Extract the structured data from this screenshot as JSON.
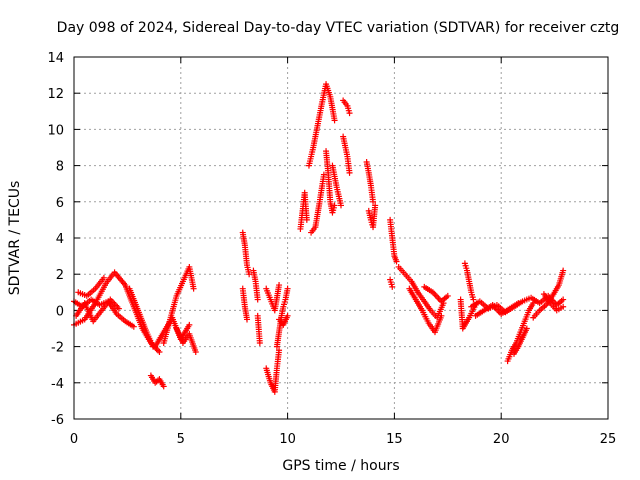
{
  "chart_data": {
    "type": "scatter",
    "title": "Day 098 of 2024, Sidereal Day-to-day VTEC variation (SDTVAR) for receiver cztg",
    "xlabel": "GPS time / hours",
    "ylabel": "SDTVAR / TECUs",
    "xlim": [
      0,
      25
    ],
    "ylim": [
      -6,
      14
    ],
    "xticks": [
      0,
      5,
      10,
      15,
      20,
      25
    ],
    "yticks": [
      -6,
      -4,
      -2,
      0,
      2,
      4,
      6,
      8,
      10,
      12,
      14
    ],
    "grid": true,
    "marker": "plus",
    "color": "#ff0000",
    "segments": [
      {
        "x": [
          0.0,
          0.5,
          1.0,
          1.5,
          1.9,
          2.4,
          2.8,
          3.2,
          3.6,
          4.0
        ],
        "y": [
          -0.8,
          -0.5,
          0.4,
          1.5,
          2.1,
          1.4,
          0.2,
          -1.0,
          -1.8,
          -2.3
        ]
      },
      {
        "x": [
          0.0,
          0.4,
          0.8,
          1.2,
          1.6,
          2.0,
          2.4,
          2.8
        ],
        "y": [
          0.5,
          0.2,
          0.6,
          0.3,
          0.5,
          -0.2,
          -0.6,
          -0.9
        ]
      },
      {
        "x": [
          0.1,
          0.5,
          0.9,
          1.3,
          1.7,
          2.1
        ],
        "y": [
          -0.3,
          0.4,
          -0.6,
          0.0,
          0.6,
          0.1
        ]
      },
      {
        "x": [
          0.2,
          0.6,
          1.0,
          1.4
        ],
        "y": [
          1.0,
          0.8,
          1.2,
          1.8
        ]
      },
      {
        "x": [
          2.6,
          3.0,
          3.4,
          3.7
        ],
        "y": [
          1.2,
          0.0,
          -1.2,
          -2.0
        ]
      },
      {
        "x": [
          3.6,
          3.8,
          4.0,
          4.2
        ],
        "y": [
          -3.6,
          -4.0,
          -3.8,
          -4.2
        ]
      },
      {
        "x": [
          3.8,
          4.2,
          4.6,
          5.0,
          5.4
        ],
        "y": [
          -2.0,
          -1.2,
          -0.4,
          -1.6,
          -0.8
        ]
      },
      {
        "x": [
          4.2,
          4.5,
          4.8,
          5.1,
          5.4,
          5.6
        ],
        "y": [
          -1.8,
          -0.5,
          0.8,
          1.6,
          2.4,
          1.2
        ]
      },
      {
        "x": [
          4.8,
          5.1,
          5.4,
          5.7
        ],
        "y": [
          -1.0,
          -1.8,
          -1.3,
          -2.3
        ]
      },
      {
        "x": [
          7.9,
          8.0,
          8.1,
          8.2
        ],
        "y": [
          4.3,
          3.6,
          2.5,
          2.0
        ]
      },
      {
        "x": [
          7.9,
          8.0,
          8.1
        ],
        "y": [
          1.2,
          0.2,
          -0.5
        ]
      },
      {
        "x": [
          8.4,
          8.5,
          8.6
        ],
        "y": [
          2.2,
          1.6,
          0.6
        ]
      },
      {
        "x": [
          8.6,
          8.7
        ],
        "y": [
          -0.3,
          -1.8
        ]
      },
      {
        "x": [
          9.0,
          9.2,
          9.4,
          9.6
        ],
        "y": [
          1.2,
          0.6,
          0.0,
          1.4
        ]
      },
      {
        "x": [
          9.0,
          9.2,
          9.4,
          9.5,
          9.6
        ],
        "y": [
          -3.2,
          -4.0,
          -4.5,
          -3.2,
          -2.2
        ]
      },
      {
        "x": [
          9.5,
          9.6,
          9.7,
          9.8,
          9.9,
          10.0
        ],
        "y": [
          -2.0,
          -1.2,
          -0.4,
          0.2,
          0.6,
          1.2
        ]
      },
      {
        "x": [
          9.6,
          9.8,
          10.0
        ],
        "y": [
          -0.5,
          -0.8,
          -0.3
        ]
      },
      {
        "x": [
          10.6,
          10.7,
          10.8,
          10.9
        ],
        "y": [
          4.5,
          5.5,
          6.5,
          5.0
        ]
      },
      {
        "x": [
          11.1,
          11.3,
          11.5,
          11.7
        ],
        "y": [
          4.3,
          4.6,
          6.0,
          7.5
        ]
      },
      {
        "x": [
          11.0,
          11.2,
          11.4,
          11.6,
          11.8,
          12.0,
          12.2
        ],
        "y": [
          8.0,
          9.0,
          10.2,
          11.4,
          12.5,
          11.8,
          10.5
        ]
      },
      {
        "x": [
          11.8,
          11.9,
          12.0,
          12.1,
          12.2
        ],
        "y": [
          8.8,
          7.6,
          6.0,
          5.4,
          5.8
        ]
      },
      {
        "x": [
          12.1,
          12.3,
          12.5
        ],
        "y": [
          8.0,
          6.8,
          5.8
        ]
      },
      {
        "x": [
          12.6,
          12.8,
          12.9
        ],
        "y": [
          11.6,
          11.3,
          10.9
        ]
      },
      {
        "x": [
          12.6,
          12.8,
          12.9
        ],
        "y": [
          9.6,
          8.5,
          7.6
        ]
      },
      {
        "x": [
          13.7,
          13.8,
          13.9,
          14.0
        ],
        "y": [
          8.2,
          7.6,
          6.9,
          6.0
        ]
      },
      {
        "x": [
          13.8,
          13.9,
          14.0,
          14.1
        ],
        "y": [
          5.5,
          5.0,
          4.6,
          5.8
        ]
      },
      {
        "x": [
          14.8,
          14.9,
          15.0,
          15.1
        ],
        "y": [
          5.0,
          4.0,
          3.0,
          2.7
        ]
      },
      {
        "x": [
          14.8,
          14.9
        ],
        "y": [
          1.7,
          1.3
        ]
      },
      {
        "x": [
          15.2,
          15.5,
          15.8,
          16.1,
          16.4,
          16.7,
          17.0,
          17.3
        ],
        "y": [
          2.4,
          2.0,
          1.6,
          1.0,
          0.5,
          0.0,
          -0.4,
          0.4
        ]
      },
      {
        "x": [
          15.7,
          16.0,
          16.3,
          16.6,
          16.9,
          17.2
        ],
        "y": [
          1.2,
          0.6,
          0.0,
          -0.7,
          -1.2,
          -0.3
        ]
      },
      {
        "x": [
          16.4,
          16.8,
          17.2,
          17.5
        ],
        "y": [
          1.3,
          1.0,
          0.5,
          0.8
        ]
      },
      {
        "x": [
          18.1,
          18.2,
          18.5,
          18.8
        ],
        "y": [
          0.6,
          -1.0,
          -0.4,
          0.3
        ]
      },
      {
        "x": [
          18.3,
          18.4,
          18.5,
          18.6,
          18.7
        ],
        "y": [
          2.6,
          2.2,
          1.6,
          1.0,
          0.6
        ]
      },
      {
        "x": [
          18.6,
          19.0,
          19.4,
          19.8,
          20.2,
          20.6,
          21.0,
          21.4,
          21.8,
          22.2,
          22.6,
          22.9
        ],
        "y": [
          0.2,
          0.5,
          0.1,
          0.3,
          -0.1,
          0.2,
          0.5,
          0.7,
          0.4,
          0.8,
          0.3,
          0.6
        ]
      },
      {
        "x": [
          18.8,
          19.2,
          19.6,
          20.0,
          20.4,
          20.8
        ],
        "y": [
          -0.3,
          0.0,
          0.3,
          -0.2,
          0.1,
          0.4
        ]
      },
      {
        "x": [
          20.3,
          20.5,
          20.7,
          20.9,
          21.1,
          21.3,
          21.5
        ],
        "y": [
          -2.8,
          -2.2,
          -1.8,
          -1.2,
          -0.6,
          0.0,
          0.4
        ]
      },
      {
        "x": [
          20.6,
          20.8,
          21.0,
          21.2
        ],
        "y": [
          -2.4,
          -2.0,
          -1.5,
          -1.0
        ]
      },
      {
        "x": [
          21.5,
          21.8,
          22.1,
          22.4,
          22.7,
          22.9
        ],
        "y": [
          -0.4,
          0.0,
          0.3,
          0.8,
          1.4,
          2.2
        ]
      },
      {
        "x": [
          22.0,
          22.3,
          22.6,
          22.9
        ],
        "y": [
          0.9,
          0.4,
          0.0,
          0.2
        ]
      }
    ]
  }
}
